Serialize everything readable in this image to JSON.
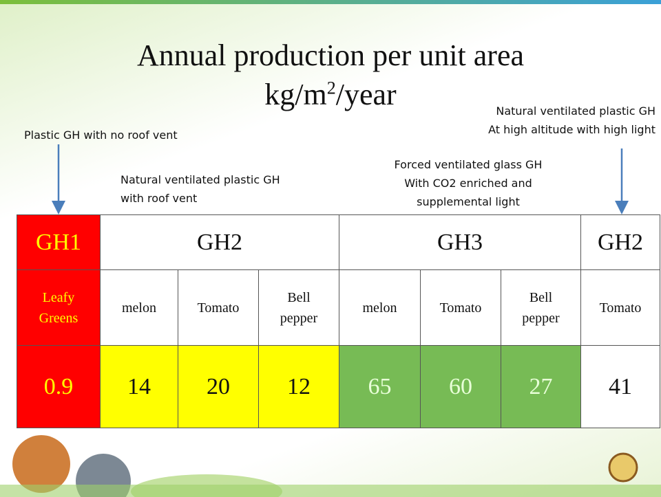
{
  "title": "Annual production per unit area",
  "units": {
    "base": "kg/m",
    "sup": "2",
    "rest": "/year"
  },
  "notes": [
    {
      "lines": [
        "Plastic GH with no roof vent"
      ]
    },
    {
      "lines": [
        "Natural ventilated plastic GH",
        "with roof vent"
      ]
    },
    {
      "lines": [
        "Forced ventilated glass GH",
        "With CO2 enriched and",
        "supplemental light"
      ]
    },
    {
      "lines": [
        "Natural ventilated plastic GH",
        "At high altitude with high light"
      ]
    }
  ],
  "table": {
    "groups": [
      "GH1",
      "GH2",
      "GH3",
      "GH2"
    ],
    "crops": [
      [
        "Leafy",
        "Greens"
      ],
      [
        "melon"
      ],
      [
        "Tomato"
      ],
      [
        "Bell",
        "pepper"
      ],
      [
        "melon"
      ],
      [
        "Tomato"
      ],
      [
        "Bell",
        "pepper"
      ],
      [
        "Tomato"
      ]
    ],
    "values": [
      0.9,
      14,
      20,
      12,
      65,
      60,
      27,
      41
    ]
  }
}
